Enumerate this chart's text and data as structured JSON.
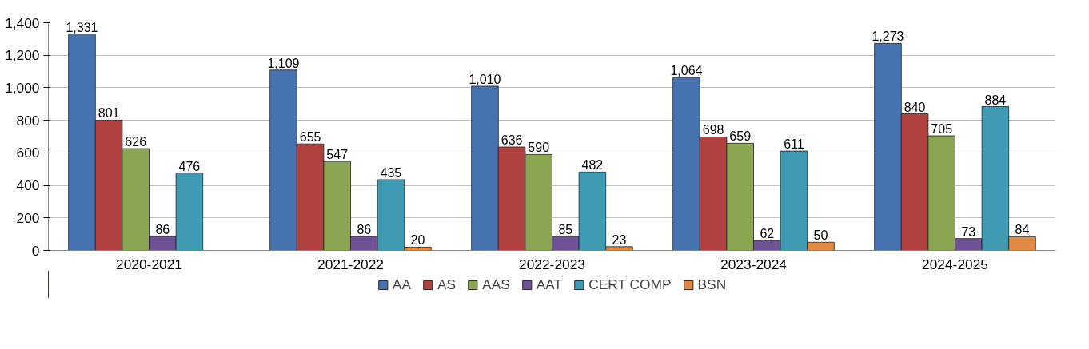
{
  "chart_data": {
    "type": "bar",
    "categories": [
      "2020-2021",
      "2021-2022",
      "2022-2023",
      "2023-2024",
      "2024-2025"
    ],
    "series": [
      {
        "name": "AA",
        "color": "#4672b0",
        "values": [
          1331,
          1109,
          1010,
          1064,
          1273
        ],
        "value_labels": [
          "1,331",
          "1,109",
          "1,010",
          "1,064",
          "1,273"
        ]
      },
      {
        "name": "AS",
        "color": "#b0413e",
        "values": [
          801,
          655,
          636,
          698,
          840
        ],
        "value_labels": [
          "801",
          "655",
          "636",
          "698",
          "840"
        ]
      },
      {
        "name": "AAS",
        "color": "#8ba650",
        "values": [
          626,
          547,
          590,
          659,
          705
        ],
        "value_labels": [
          "626",
          "547",
          "590",
          "659",
          "705"
        ]
      },
      {
        "name": "AAT",
        "color": "#6f5195",
        "values": [
          86,
          86,
          85,
          62,
          73
        ],
        "value_labels": [
          "86",
          "86",
          "85",
          "62",
          "73"
        ]
      },
      {
        "name": "CERT COMP",
        "color": "#3f9bb4",
        "values": [
          476,
          435,
          482,
          611,
          884
        ],
        "value_labels": [
          "476",
          "435",
          "482",
          "611",
          "884"
        ]
      },
      {
        "name": "BSN",
        "color": "#e08a44",
        "values": [
          null,
          20,
          23,
          50,
          84
        ],
        "value_labels": [
          null,
          "20",
          "23",
          "50",
          "84"
        ]
      }
    ],
    "ylim": [
      0,
      1400
    ],
    "yticks": [
      0,
      200,
      400,
      600,
      800,
      {
        "value": 1000,
        "label": "1,000"
      },
      {
        "value": 1200,
        "label": "1,200"
      },
      {
        "value": 1400,
        "label": "1,400"
      }
    ],
    "grid": "y",
    "legend": "bottom"
  }
}
